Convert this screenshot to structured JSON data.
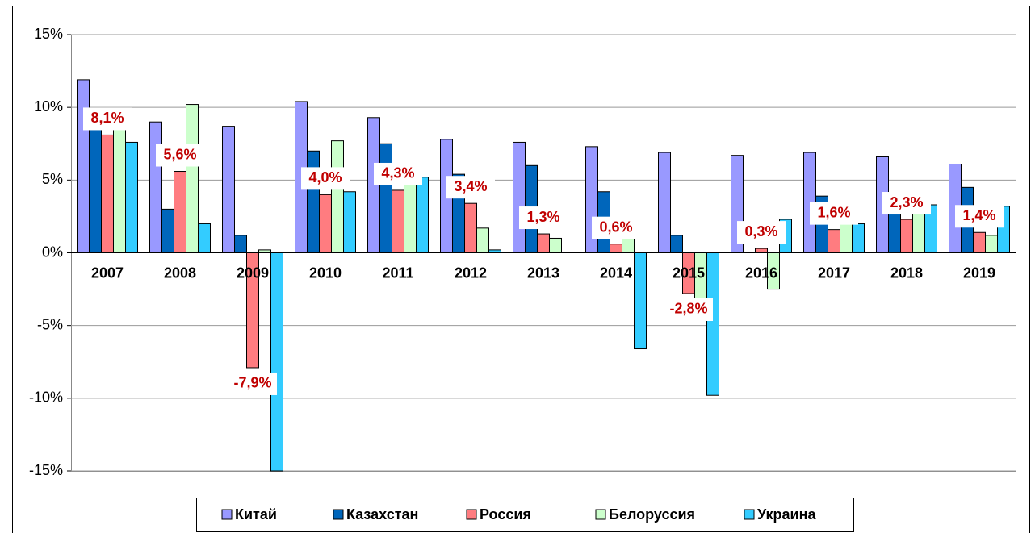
{
  "chart_data": {
    "type": "bar",
    "categories": [
      "2007",
      "2008",
      "2009",
      "2010",
      "2011",
      "2012",
      "2013",
      "2014",
      "2015",
      "2016",
      "2017",
      "2018",
      "2019"
    ],
    "series": [
      {
        "name": "Китай",
        "color": "#9999ff",
        "values": [
          11.9,
          9.0,
          8.7,
          10.4,
          9.3,
          7.8,
          7.6,
          7.3,
          6.9,
          6.7,
          6.9,
          6.6,
          6.1
        ]
      },
      {
        "name": "Казахстан",
        "color": "#0066bb",
        "values": [
          8.5,
          3.0,
          1.2,
          7.0,
          7.5,
          5.4,
          6.0,
          4.2,
          1.2,
          0,
          3.9,
          4.1,
          4.5
        ]
      },
      {
        "name": "Россия",
        "color": "#ff7c80",
        "values": [
          8.1,
          5.6,
          -7.9,
          4.0,
          4.3,
          3.4,
          1.3,
          0.6,
          -2.8,
          0.3,
          1.6,
          2.3,
          1.4
        ],
        "value_labels": [
          "8,1%",
          "5,6%",
          "-7,9%",
          "4,0%",
          "4,3%",
          "3,4%",
          "1,3%",
          "0,6%",
          "-2,8%",
          "0,3%",
          "1,6%",
          "2,3%",
          "1,4%"
        ]
      },
      {
        "name": "Белоруссия",
        "color": "#ccffcc",
        "values": [
          8.6,
          10.2,
          0.2,
          7.7,
          5.5,
          1.7,
          1.0,
          1.7,
          -3.8,
          -2.5,
          2.4,
          3.0,
          1.2
        ]
      },
      {
        "name": "Украина",
        "color": "#33ccff",
        "values": [
          7.6,
          2.0,
          -15,
          4.2,
          5.2,
          0.2,
          0,
          -6.6,
          -9.8,
          2.3,
          2.0,
          3.3,
          3.2
        ]
      }
    ],
    "ylim": [
      -15,
      15
    ],
    "yticks": [
      {
        "value": -15,
        "label": "-15%"
      },
      {
        "value": -10,
        "label": "-10%"
      },
      {
        "value": -5,
        "label": "-5%"
      },
      {
        "value": 0,
        "label": "0%"
      },
      {
        "value": 5,
        "label": "5%"
      },
      {
        "value": 10,
        "label": "10%"
      },
      {
        "value": 15,
        "label": "15%"
      }
    ],
    "grid": true,
    "legend": "bottom"
  }
}
